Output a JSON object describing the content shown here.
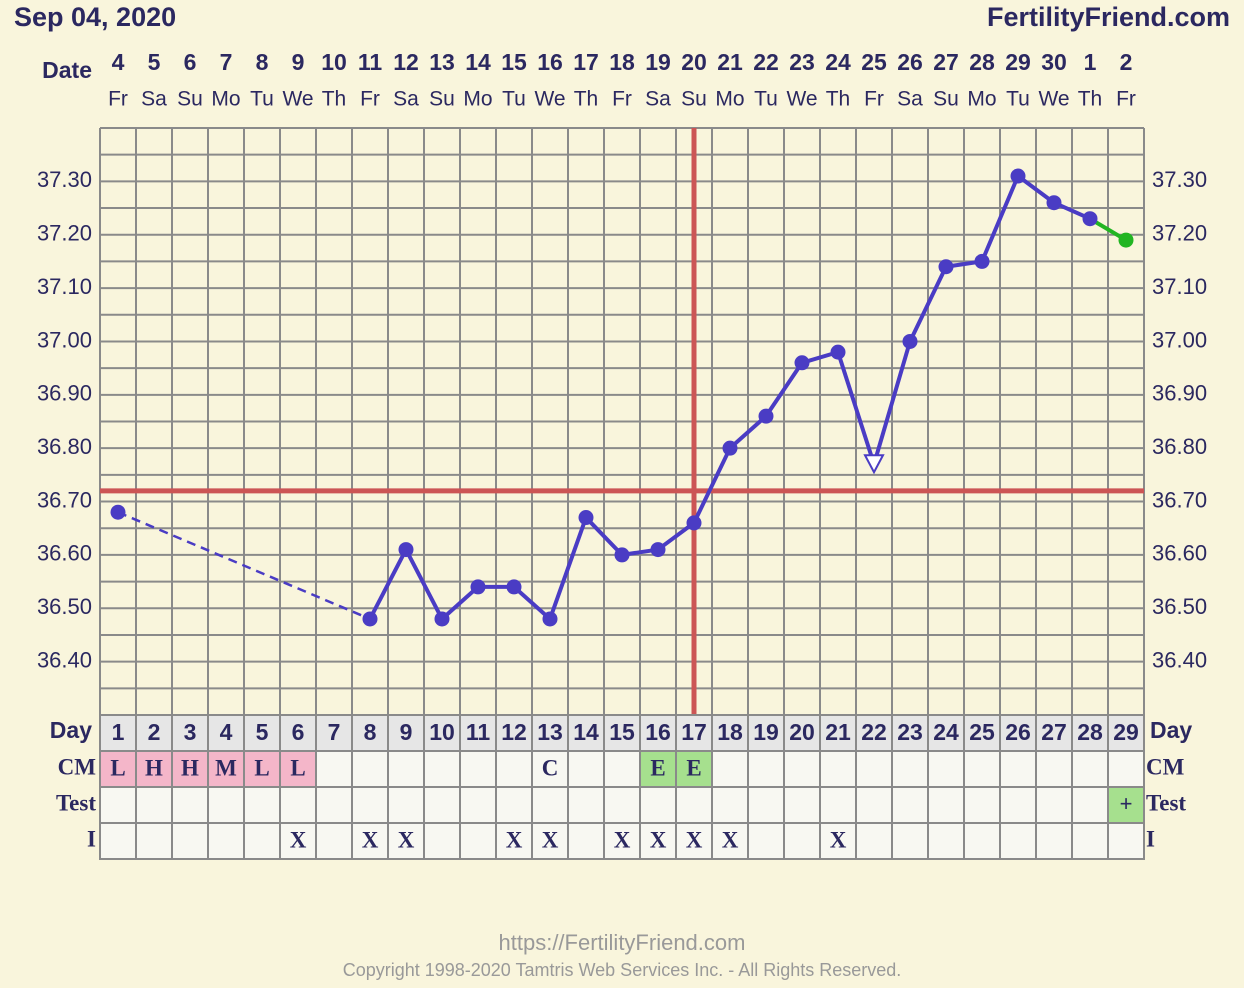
{
  "header": {
    "date": "Sep 04, 2020",
    "site": "FertilityFriend.com"
  },
  "chart_data": {
    "type": "line",
    "x_label": "Date",
    "categories": [
      "4",
      "5",
      "6",
      "7",
      "8",
      "9",
      "10",
      "11",
      "12",
      "13",
      "14",
      "15",
      "16",
      "17",
      "18",
      "19",
      "20",
      "21",
      "22",
      "23",
      "24",
      "25",
      "26",
      "27",
      "28",
      "29",
      "30",
      "1",
      "2"
    ],
    "weekdays": [
      "Fr",
      "Sa",
      "Su",
      "Mo",
      "Tu",
      "We",
      "Th",
      "Fr",
      "Sa",
      "Su",
      "Mo",
      "Tu",
      "We",
      "Th",
      "Fr",
      "Sa",
      "Su",
      "Mo",
      "Tu",
      "We",
      "Th",
      "Fr",
      "Sa",
      "Su",
      "Mo",
      "Tu",
      "We",
      "Th",
      "Fr"
    ],
    "day_label": "Day",
    "days": [
      1,
      2,
      3,
      4,
      5,
      6,
      7,
      8,
      9,
      10,
      11,
      12,
      13,
      14,
      15,
      16,
      17,
      18,
      19,
      20,
      21,
      22,
      23,
      24,
      25,
      26,
      27,
      28,
      29
    ],
    "values": [
      36.68,
      null,
      null,
      null,
      null,
      null,
      null,
      36.48,
      36.61,
      36.48,
      36.54,
      36.54,
      36.48,
      36.67,
      36.6,
      36.61,
      36.66,
      36.8,
      36.86,
      36.96,
      36.98,
      36.77,
      37.0,
      37.14,
      37.15,
      37.31,
      37.26,
      37.23,
      37.19
    ],
    "color": "#4a3cc4",
    "point_colors": [
      "#4a3cc4",
      null,
      null,
      null,
      null,
      null,
      null,
      "#4a3cc4",
      "#4a3cc4",
      "#4a3cc4",
      "#4a3cc4",
      "#4a3cc4",
      "#4a3cc4",
      "#4a3cc4",
      "#4a3cc4",
      "#4a3cc4",
      "#4a3cc4",
      "#4a3cc4",
      "#4a3cc4",
      "#4a3cc4",
      "#4a3cc4",
      "#4a3cc4",
      "#4a3cc4",
      "#4a3cc4",
      "#4a3cc4",
      "#4a3cc4",
      "#4a3cc4",
      "#4a3cc4",
      "#22b522"
    ],
    "markers": [
      "circle",
      null,
      null,
      null,
      null,
      null,
      null,
      "circle",
      "circle",
      "circle",
      "circle",
      "circle",
      "circle",
      "circle",
      "circle",
      "circle",
      "circle",
      "circle",
      "circle",
      "circle",
      "circle",
      "triangle-open",
      "circle",
      "circle",
      "circle",
      "circle",
      "circle",
      "circle",
      "circle"
    ],
    "ylim": [
      36.3,
      37.4
    ],
    "yticks": [
      {
        "value": 36.4,
        "label": "36.40"
      },
      {
        "value": 36.5,
        "label": "36.50"
      },
      {
        "value": 36.6,
        "label": "36.60"
      },
      {
        "value": 36.7,
        "label": "36.70"
      },
      {
        "value": 36.8,
        "label": "36.80"
      },
      {
        "value": 36.9,
        "label": "36.90"
      },
      {
        "value": 37.0,
        "label": "37.00"
      },
      {
        "value": 37.1,
        "label": "37.10"
      },
      {
        "value": 37.2,
        "label": "37.20"
      },
      {
        "value": 37.3,
        "label": "37.30"
      }
    ],
    "grid": true,
    "coverline": 36.72,
    "ovulation_day": 17,
    "marker_color": "#cc5555"
  },
  "rows": [
    {
      "label": "CM",
      "values": [
        "L",
        "H",
        "H",
        "M",
        "L",
        "L",
        null,
        null,
        null,
        null,
        null,
        null,
        "C",
        null,
        null,
        "E",
        "E",
        null,
        null,
        null,
        null,
        null,
        null,
        null,
        null,
        null,
        null,
        null,
        null
      ]
    },
    {
      "label": "Test",
      "values": [
        null,
        null,
        null,
        null,
        null,
        null,
        null,
        null,
        null,
        null,
        null,
        null,
        null,
        null,
        null,
        null,
        null,
        null,
        null,
        null,
        null,
        null,
        null,
        null,
        null,
        null,
        null,
        null,
        "+"
      ]
    },
    {
      "label": "I",
      "values": [
        null,
        null,
        null,
        null,
        null,
        "X",
        null,
        "X",
        "X",
        null,
        null,
        "X",
        "X",
        null,
        "X",
        "X",
        "X",
        "X",
        null,
        null,
        "X",
        null,
        null,
        null,
        null,
        null,
        null,
        null,
        null
      ]
    }
  ],
  "cell_colors": {
    "L": "#f4b6c9",
    "H": "#f4b6c9",
    "M": "#f4b6c9",
    "E": "#a6e08e",
    "+": "#a6e08e"
  },
  "footer": {
    "url": "https://FertilityFriend.com",
    "copyright": "Copyright 1998-2020 Tamtris Web Services Inc. - All Rights Reserved."
  }
}
